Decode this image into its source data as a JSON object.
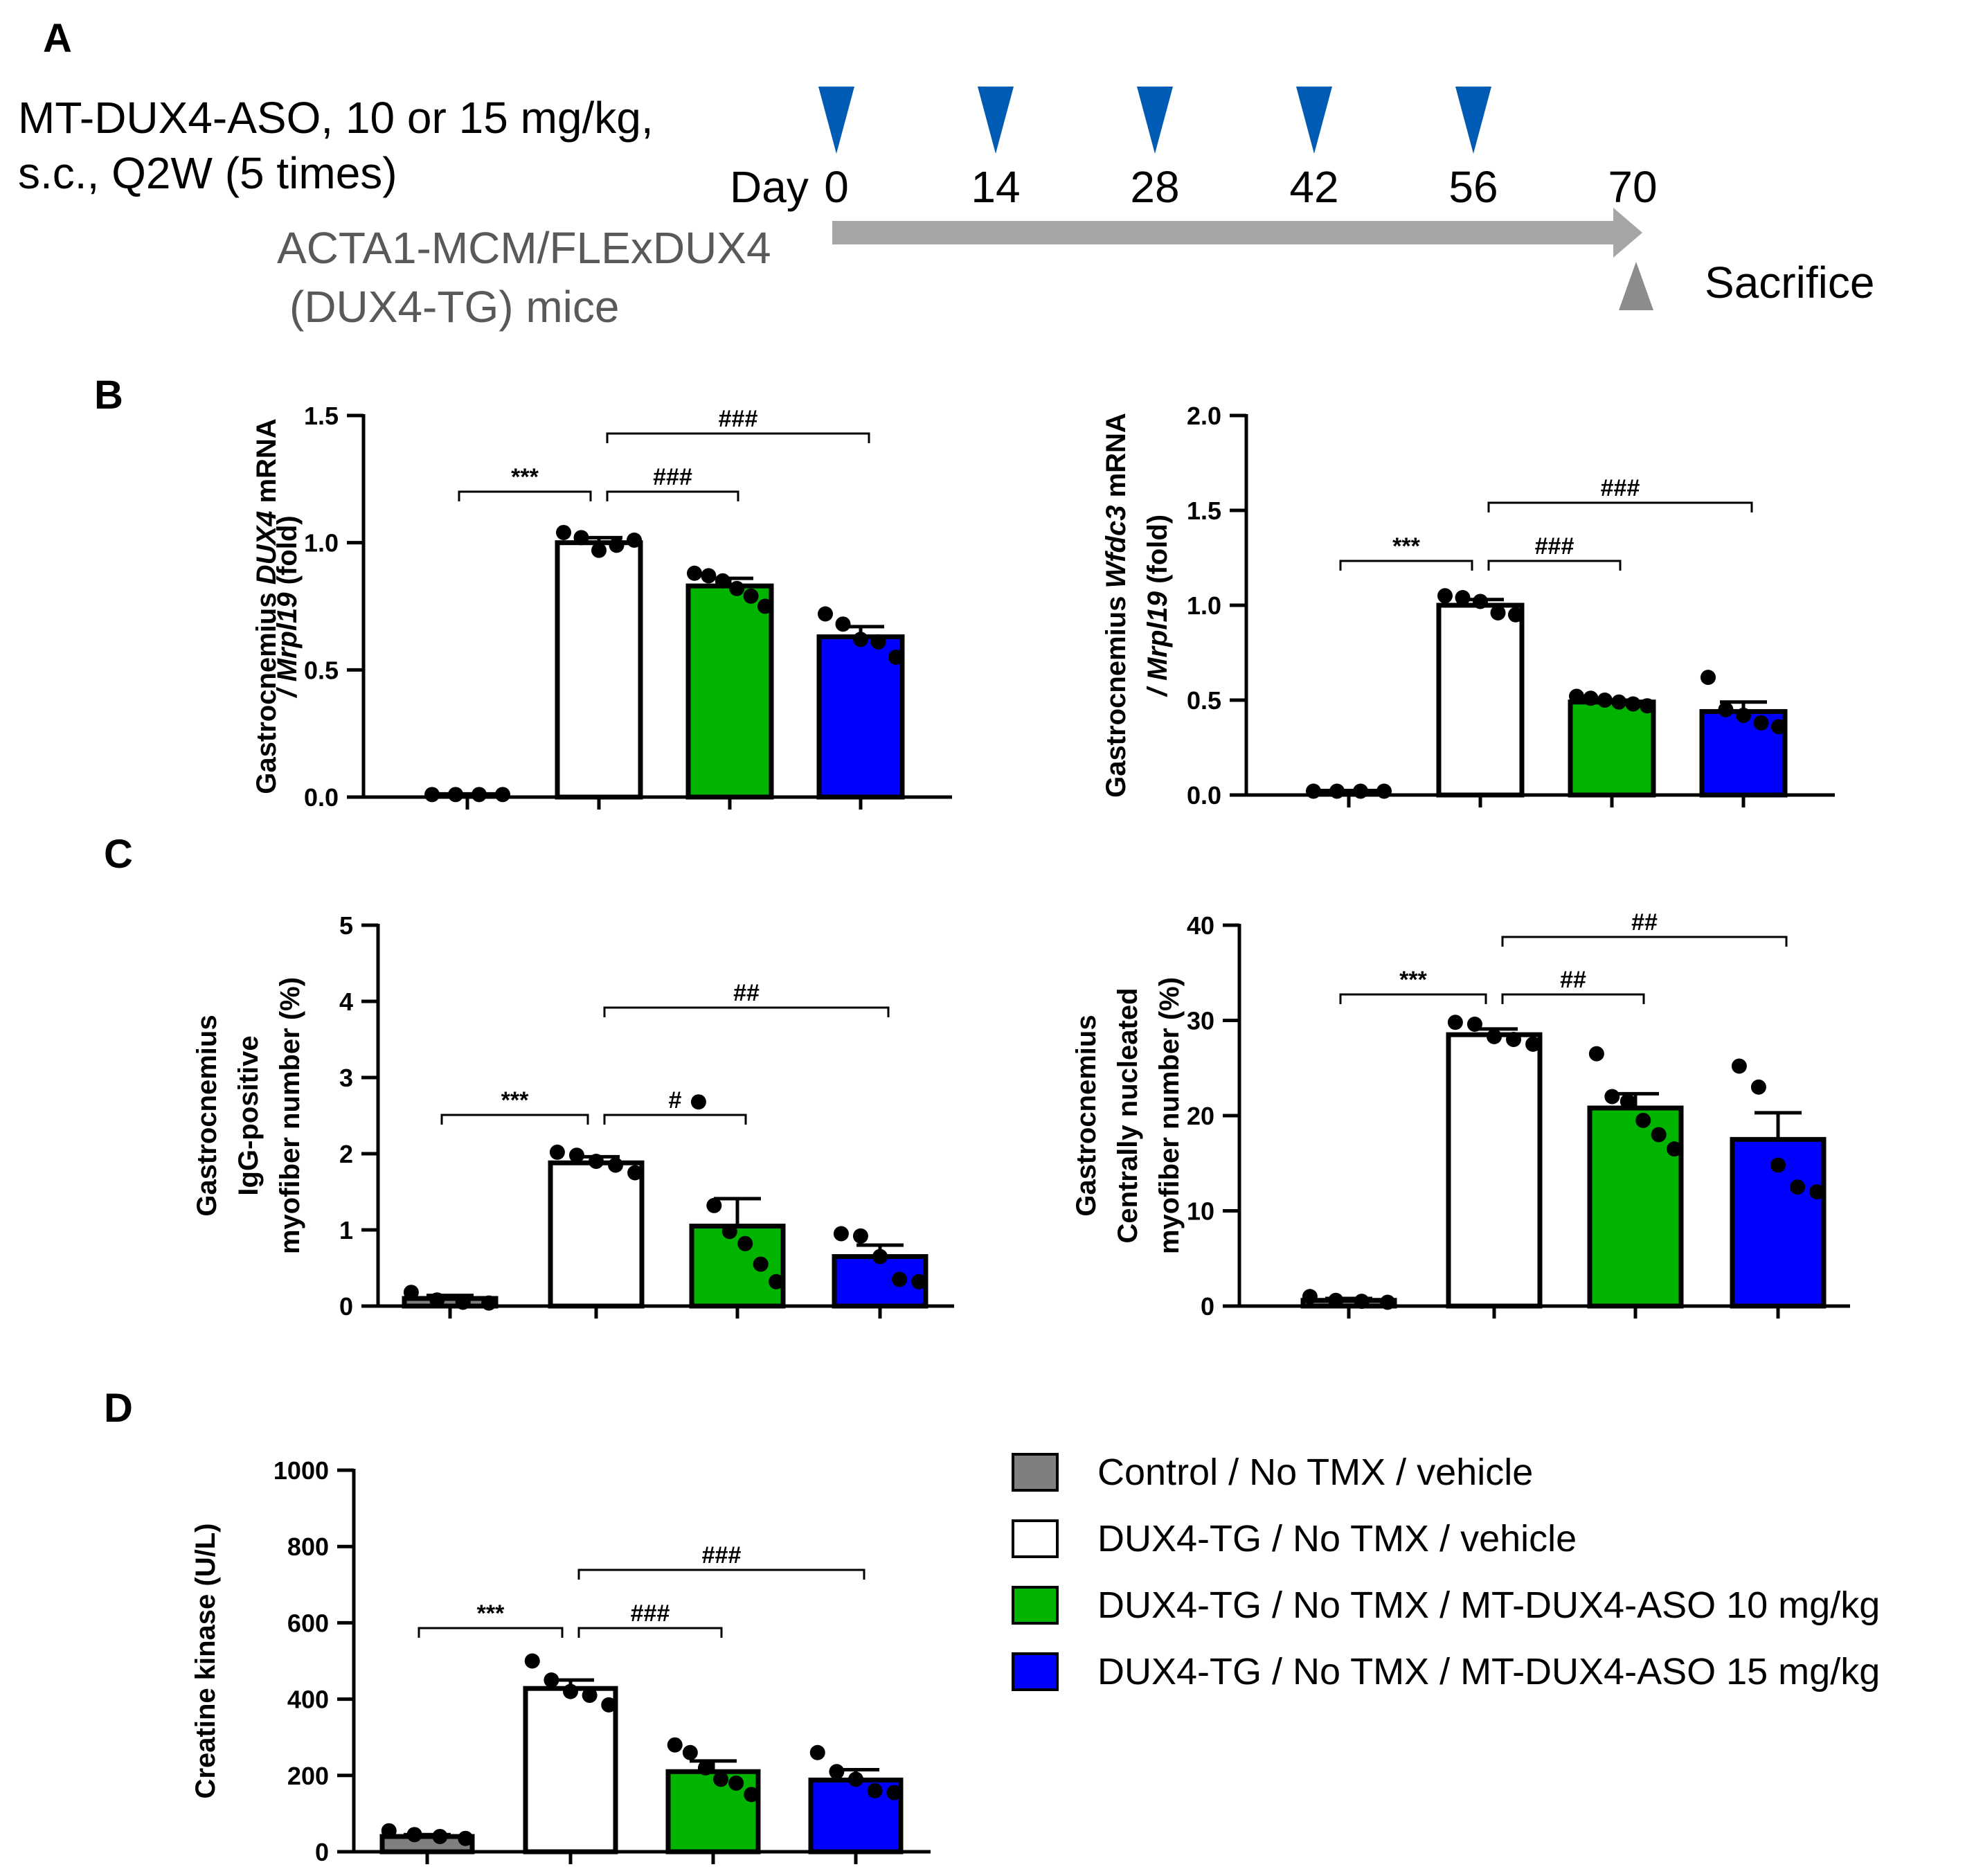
{
  "panels": {
    "a": "A",
    "b": "B",
    "c": "C",
    "d": "D"
  },
  "schedule": {
    "dose_line1": "MT-DUX4-ASO, 10 or 15 mg/kg,",
    "dose_line2": "s.c., Q2W (5 times)",
    "day_label": "Day",
    "days": [
      "0",
      "14",
      "28",
      "42",
      "56",
      "70"
    ],
    "dosing_days": [
      0,
      14,
      28,
      42,
      56
    ],
    "mouse_line1": "ACTA1-MCM/FLExDUX4",
    "mouse_line2": "(DUX4-TG) mice",
    "endpoint": "Sacrifice",
    "colors": {
      "dose_marker": "#005bb5",
      "timeline": "#a6a6a6"
    }
  },
  "legend": {
    "items": [
      {
        "label": "Control / No TMX / vehicle",
        "color": "#7f7f7f"
      },
      {
        "label": "DUX4-TG / No TMX / vehicle",
        "color": "#ffffff"
      },
      {
        "label": "DUX4-TG / No TMX / MT-DUX4-ASO 10 mg/kg",
        "color": "#00b400"
      },
      {
        "label": "DUX4-TG / No TMX / MT-DUX4-ASO 15 mg/kg",
        "color": "#0000ff"
      }
    ]
  },
  "chart_data": [
    {
      "id": "b1",
      "type": "bar",
      "ylabel_lines": [
        [
          {
            "t": "Gastrocnemius ",
            "i": false
          },
          {
            "t": "DUX4",
            "i": true
          },
          {
            "t": " mRNA",
            "i": false
          }
        ],
        [
          {
            "t": "/ ",
            "i": true
          },
          {
            "t": "Mrpl19",
            "i": true
          },
          {
            "t": " (fold)",
            "i": false
          }
        ]
      ],
      "ylim": [
        0,
        1.5
      ],
      "ticks": [
        "0.0",
        "0.5",
        "1.0",
        "1.5"
      ],
      "tick_values": [
        0,
        0.5,
        1.0,
        1.5
      ],
      "groups": [
        {
          "mean": 0.01,
          "sem": 0.0,
          "points": [
            0.01,
            0.01,
            0.01,
            0.01
          ],
          "color": "#7f7f7f"
        },
        {
          "mean": 1.0,
          "sem": 0.02,
          "points": [
            1.04,
            1.02,
            0.97,
            0.99,
            1.01
          ],
          "color": "#ffffff"
        },
        {
          "mean": 0.83,
          "sem": 0.03,
          "points": [
            0.88,
            0.87,
            0.85,
            0.82,
            0.79,
            0.75
          ],
          "color": "#00b400"
        },
        {
          "mean": 0.63,
          "sem": 0.04,
          "points": [
            0.72,
            0.68,
            0.62,
            0.61,
            0.55
          ],
          "color": "#0000ff"
        }
      ],
      "sig": [
        {
          "from": 0,
          "to": 1,
          "label": "***",
          "level": 1
        },
        {
          "from": 1,
          "to": 2,
          "label": "###",
          "level": 1
        },
        {
          "from": 1,
          "to": 3,
          "label": "###",
          "level": 2
        }
      ]
    },
    {
      "id": "b2",
      "type": "bar",
      "ylabel_lines": [
        [
          {
            "t": "Gastrocnemius ",
            "i": false
          },
          {
            "t": "Wfdc3",
            "i": true
          },
          {
            "t": " mRNA",
            "i": false
          }
        ],
        [
          {
            "t": "/ ",
            "i": true
          },
          {
            "t": "Mrpl19",
            "i": true
          },
          {
            "t": " (fold)",
            "i": false
          }
        ]
      ],
      "ylim": [
        0,
        2.0
      ],
      "ticks": [
        "0.0",
        "0.5",
        "1.0",
        "1.5",
        "2.0"
      ],
      "tick_values": [
        0,
        0.5,
        1.0,
        1.5,
        2.0
      ],
      "groups": [
        {
          "mean": 0.02,
          "sem": 0.0,
          "points": [
            0.02,
            0.02,
            0.02,
            0.02
          ],
          "color": "#7f7f7f"
        },
        {
          "mean": 1.0,
          "sem": 0.03,
          "points": [
            1.05,
            1.04,
            1.02,
            0.96,
            0.95
          ],
          "color": "#ffffff"
        },
        {
          "mean": 0.49,
          "sem": 0.01,
          "points": [
            0.52,
            0.51,
            0.5,
            0.49,
            0.48,
            0.47
          ],
          "color": "#00b400"
        },
        {
          "mean": 0.44,
          "sem": 0.05,
          "points": [
            0.62,
            0.45,
            0.42,
            0.38,
            0.36
          ],
          "color": "#0000ff"
        }
      ],
      "sig": [
        {
          "from": 0,
          "to": 1,
          "label": "***",
          "level": 1
        },
        {
          "from": 1,
          "to": 2,
          "label": "###",
          "level": 1
        },
        {
          "from": 1,
          "to": 3,
          "label": "###",
          "level": 2
        }
      ]
    },
    {
      "id": "c1",
      "type": "bar",
      "ylabel_lines": [
        [
          {
            "t": "Gastrocnemius",
            "i": false
          }
        ],
        [
          {
            "t": "IgG-positive",
            "i": false
          }
        ],
        [
          {
            "t": "myofiber number (%)",
            "i": false
          }
        ]
      ],
      "ylim": [
        0,
        5
      ],
      "ticks": [
        "0",
        "1",
        "2",
        "3",
        "4",
        "5"
      ],
      "tick_values": [
        0,
        1,
        2,
        3,
        4,
        5
      ],
      "groups": [
        {
          "mean": 0.1,
          "sem": 0.04,
          "points": [
            0.18,
            0.08,
            0.05,
            0.04
          ],
          "color": "#7f7f7f"
        },
        {
          "mean": 1.88,
          "sem": 0.08,
          "points": [
            2.02,
            1.98,
            1.9,
            1.85,
            1.75
          ],
          "color": "#ffffff"
        },
        {
          "mean": 1.05,
          "sem": 0.36,
          "points": [
            2.68,
            1.32,
            0.98,
            0.82,
            0.55,
            0.32
          ],
          "color": "#00b400"
        },
        {
          "mean": 0.65,
          "sem": 0.15,
          "points": [
            0.95,
            0.92,
            0.65,
            0.35,
            0.32
          ],
          "color": "#0000ff"
        }
      ],
      "sig": [
        {
          "from": 0,
          "to": 1,
          "label": "***",
          "level": 1
        },
        {
          "from": 1,
          "to": 2,
          "label": "#",
          "level": 1
        },
        {
          "from": 1,
          "to": 3,
          "label": "##",
          "level": 2
        }
      ]
    },
    {
      "id": "c2",
      "type": "bar",
      "ylabel_lines": [
        [
          {
            "t": "Gastrocnemius",
            "i": false
          }
        ],
        [
          {
            "t": "Centrally nucleated",
            "i": false
          }
        ],
        [
          {
            "t": "myofiber number (%)",
            "i": false
          }
        ]
      ],
      "ylim": [
        0,
        40
      ],
      "ticks": [
        "0",
        "10",
        "20",
        "30",
        "40"
      ],
      "tick_values": [
        0,
        10,
        20,
        30,
        40
      ],
      "groups": [
        {
          "mean": 0.6,
          "sem": 0.2,
          "points": [
            1.0,
            0.6,
            0.5,
            0.4
          ],
          "color": "#7f7f7f"
        },
        {
          "mean": 28.5,
          "sem": 0.6,
          "points": [
            29.8,
            29.6,
            28.3,
            28.0,
            27.5
          ],
          "color": "#ffffff"
        },
        {
          "mean": 20.8,
          "sem": 1.5,
          "points": [
            26.5,
            22.0,
            21.5,
            19.5,
            18.0,
            16.5
          ],
          "color": "#00b400"
        },
        {
          "mean": 17.5,
          "sem": 2.8,
          "points": [
            25.2,
            23.0,
            14.8,
            12.5,
            12.0
          ],
          "color": "#0000ff"
        }
      ],
      "sig": [
        {
          "from": 0,
          "to": 1,
          "label": "***",
          "level": 1
        },
        {
          "from": 1,
          "to": 2,
          "label": "##",
          "level": 1
        },
        {
          "from": 1,
          "to": 3,
          "label": "##",
          "level": 2
        }
      ]
    },
    {
      "id": "d",
      "type": "bar",
      "ylabel_lines": [
        [
          {
            "t": "Creatine kinase (U/L)",
            "i": false
          }
        ]
      ],
      "ylim": [
        0,
        1000
      ],
      "ticks": [
        "0",
        "200",
        "400",
        "600",
        "800",
        "1000"
      ],
      "tick_values": [
        0,
        200,
        400,
        600,
        800,
        1000
      ],
      "groups": [
        {
          "mean": 40,
          "sem": 5,
          "points": [
            55,
            45,
            40,
            35
          ],
          "color": "#7f7f7f"
        },
        {
          "mean": 428,
          "sem": 22,
          "points": [
            500,
            450,
            420,
            410,
            385
          ],
          "color": "#ffffff"
        },
        {
          "mean": 210,
          "sem": 28,
          "points": [
            280,
            260,
            220,
            190,
            180,
            150
          ],
          "color": "#00b400"
        },
        {
          "mean": 188,
          "sem": 27,
          "points": [
            260,
            210,
            190,
            160,
            155
          ],
          "color": "#0000ff"
        }
      ],
      "sig": [
        {
          "from": 0,
          "to": 1,
          "label": "***",
          "level": 1
        },
        {
          "from": 1,
          "to": 2,
          "label": "###",
          "level": 1
        },
        {
          "from": 1,
          "to": 3,
          "label": "###",
          "level": 2
        }
      ]
    }
  ]
}
